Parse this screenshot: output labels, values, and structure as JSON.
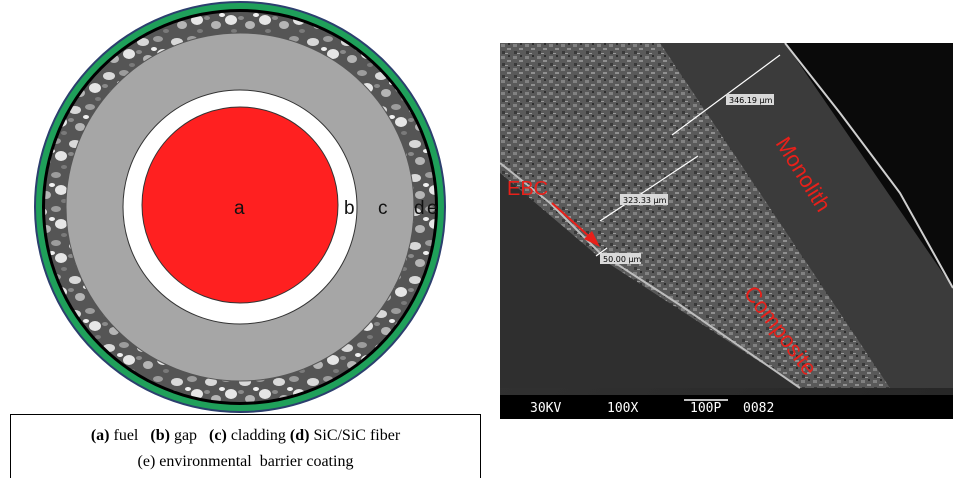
{
  "schematic": {
    "letters": {
      "a": "a",
      "b": "b",
      "c": "c",
      "d": "d",
      "e": "e"
    },
    "colors": {
      "fuel": "#ff2020",
      "gap": "#ffffff",
      "cladding": "#a6a6a6",
      "fiber_base": "#4f4f4f",
      "ebc": "#1fa05a",
      "outline": "#000000"
    }
  },
  "caption": {
    "a_key": "(a)",
    "a_text": "fuel",
    "b_key": "(b)",
    "b_text": "gap",
    "c_key": "(c)",
    "c_text": "cladding",
    "d_key": "(d)",
    "d_text": "SiC/SiC fiber",
    "e_line": "(e) environmental  barrier coating"
  },
  "sem": {
    "measurements": {
      "m1": "346.19 µm",
      "m2": "323.33 µm",
      "m3": "50.00 µm"
    },
    "labels": {
      "monolith": "Monolith",
      "composite": "Composite",
      "ebc": "EBC"
    },
    "infobar": {
      "kv": "30KV",
      "mag": "100X",
      "scale": "100P",
      "num": "0082"
    },
    "colors": {
      "label_red": "#e8201a",
      "measure_line": "#ffffff"
    }
  }
}
